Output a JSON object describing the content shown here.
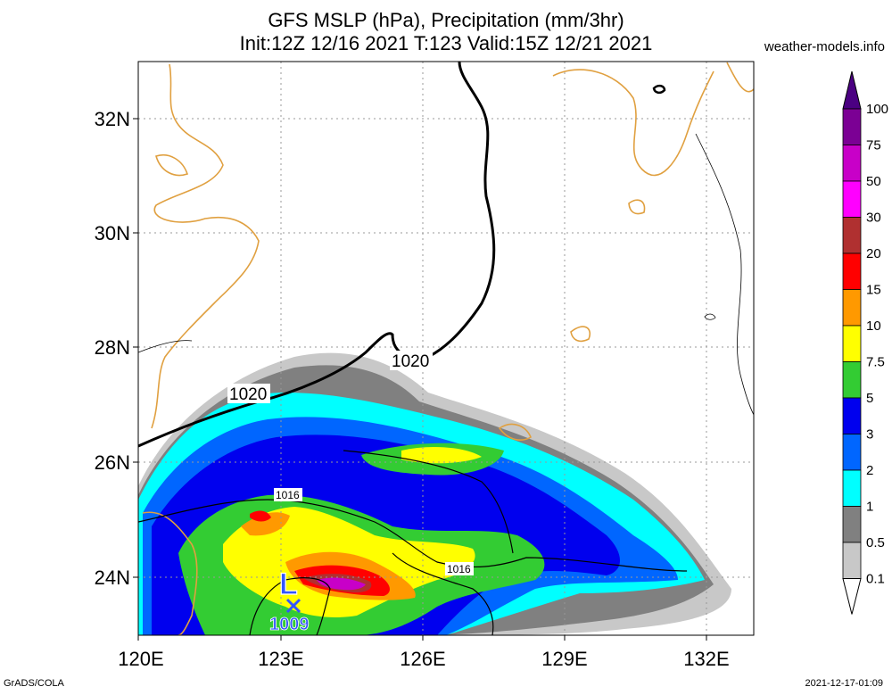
{
  "header": {
    "title_line1": "GFS MSLP (hPa), Precipitation (mm/3hr)",
    "title_line2": "Init:12Z 12/16 2021 T:123 Valid:15Z 12/21 2021",
    "site": "weather-models.info"
  },
  "footer": {
    "left": "GrADS/COLA",
    "right": "2021-12-17-01:09"
  },
  "map": {
    "lon_ticks": [
      "120E",
      "123E",
      "126E",
      "129E",
      "132E"
    ],
    "lat_ticks": [
      "32N",
      "30N",
      "28N",
      "26N",
      "24N"
    ],
    "lon_range": [
      120,
      133
    ],
    "lat_range": [
      23,
      33
    ],
    "isobar_labels": [
      "1020",
      "1020",
      "1016",
      "1016"
    ],
    "low": {
      "symbol": "L",
      "value": "1009",
      "marker": "x-icon"
    }
  },
  "colorbar": {
    "labels": [
      "100",
      "75",
      "50",
      "30",
      "20",
      "15",
      "10",
      "7.5",
      "5",
      "3",
      "2",
      "1",
      "0.5",
      "0.1"
    ],
    "colors": [
      "#4b0082",
      "#7b0094",
      "#c800c8",
      "#ff00ff",
      "#b03030",
      "#ff0000",
      "#ff9900",
      "#ffff00",
      "#33cc33",
      "#0000ee",
      "#0066ff",
      "#00ffff",
      "#808080",
      "#c8c8c8",
      "#ffffff"
    ]
  }
}
